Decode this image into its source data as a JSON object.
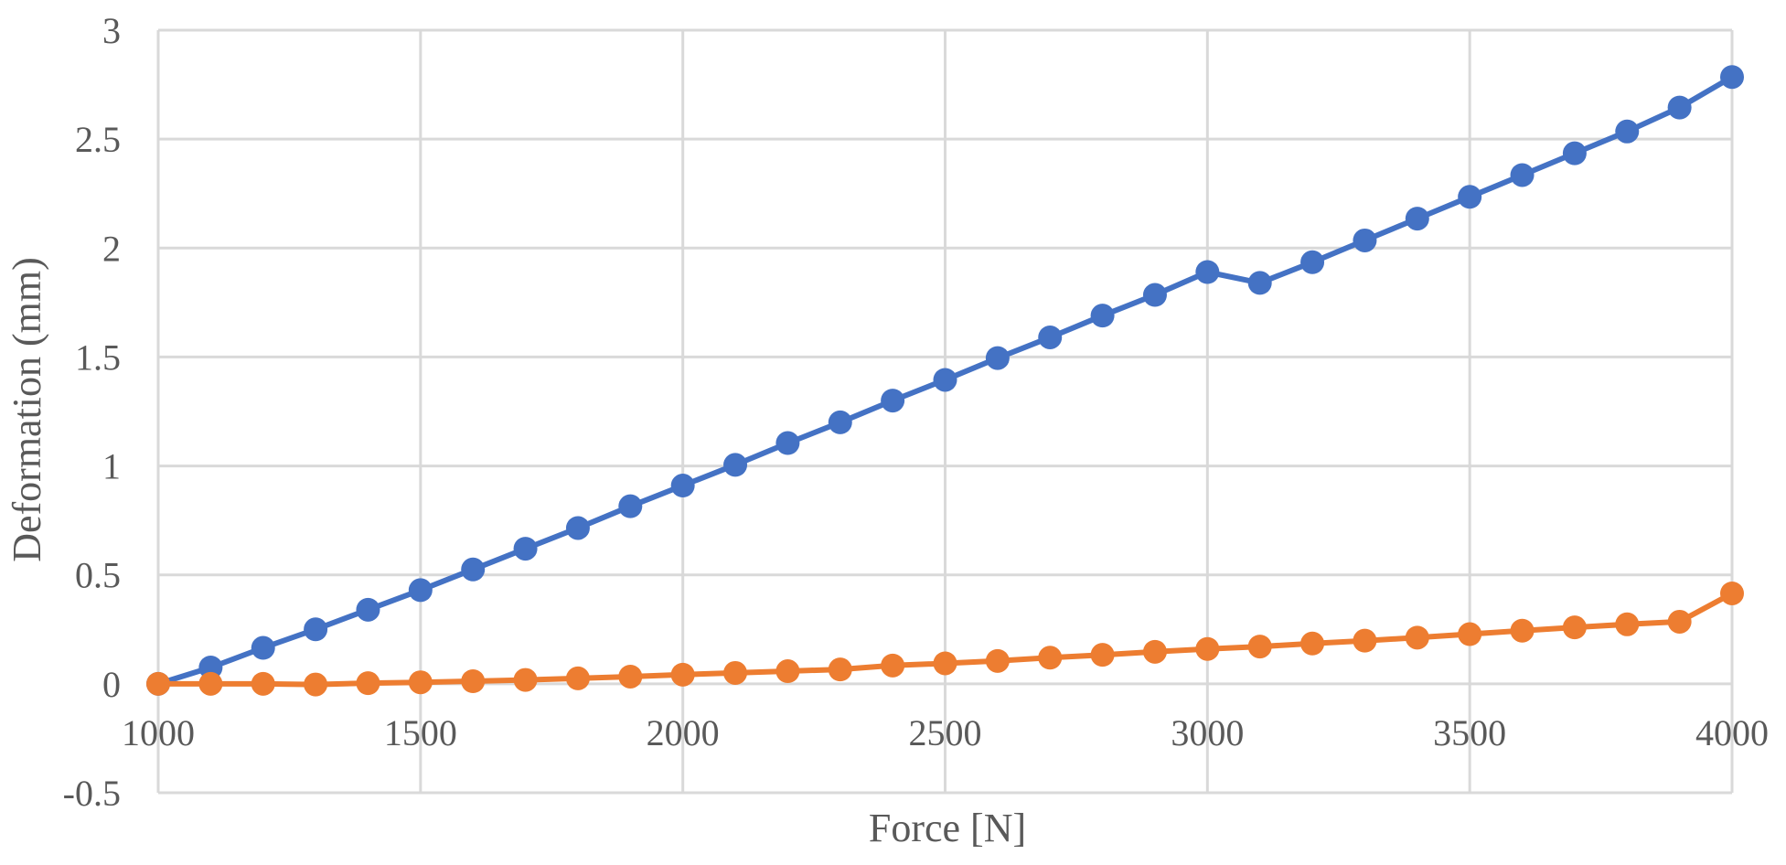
{
  "chart_data": {
    "type": "line",
    "title": "",
    "xlabel": "Force [N]",
    "ylabel": "Deformation (mm)",
    "xlim": [
      1000,
      4000
    ],
    "ylim": [
      -0.5,
      3
    ],
    "grid": true,
    "legend": "none",
    "x_ticks": [
      "1000",
      "1500",
      "2000",
      "2500",
      "3000",
      "3500",
      "4000"
    ],
    "y_ticks": [
      "-0.5",
      "0",
      "0.5",
      "1",
      "1.5",
      "2",
      "2.5",
      "3"
    ],
    "x": [
      1000,
      1100,
      1200,
      1300,
      1400,
      1500,
      1600,
      1700,
      1800,
      1900,
      2000,
      2100,
      2200,
      2300,
      2400,
      2500,
      2600,
      2700,
      2800,
      2900,
      3000,
      3100,
      3200,
      3300,
      3400,
      3500,
      3600,
      3700,
      3800,
      3900,
      4000
    ],
    "series": [
      {
        "color": "#4472C4",
        "values": [
          0.0,
          0.075,
          0.165,
          0.25,
          0.34,
          0.43,
          0.525,
          0.62,
          0.715,
          0.815,
          0.91,
          1.005,
          1.105,
          1.2,
          1.3,
          1.395,
          1.495,
          1.59,
          1.69,
          1.785,
          1.89,
          1.84,
          1.935,
          2.035,
          2.135,
          2.235,
          2.335,
          2.435,
          2.535,
          2.645,
          2.785
        ]
      },
      {
        "color": "#ED7D31",
        "values": [
          0.0,
          0.0,
          0.0,
          -0.003,
          0.003,
          0.007,
          0.012,
          0.018,
          0.025,
          0.033,
          0.042,
          0.05,
          0.058,
          0.066,
          0.084,
          0.094,
          0.105,
          0.12,
          0.133,
          0.147,
          0.16,
          0.171,
          0.185,
          0.198,
          0.212,
          0.228,
          0.244,
          0.259,
          0.273,
          0.285,
          0.415
        ]
      }
    ]
  }
}
